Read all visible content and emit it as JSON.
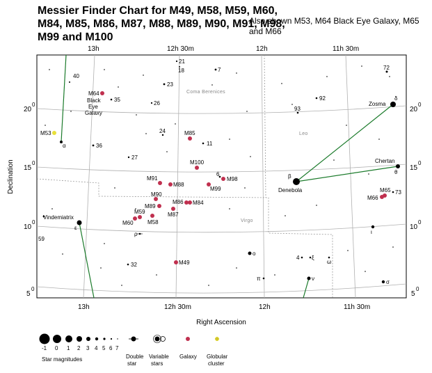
{
  "header": {
    "title": "Messier Finder Chart for M49, M58, M59, M60, M84, M85, M86, M87, M88, M89, M90, M91, M98, M99 and M100",
    "subtitle": "Also shown M53, M64 Black Eye Galaxy, M65 and M66"
  },
  "axes": {
    "ra_ticks": [
      "13h",
      "12h 30m",
      "12h",
      "11h 30m"
    ],
    "dec_ticks": [
      "20",
      "15",
      "10",
      "5"
    ],
    "degree_symbol": "0",
    "x_title": "Right Ascension",
    "y_title": "Declination"
  },
  "constellations": [
    "Coma Berenices",
    "Leo",
    "Virgo"
  ],
  "colors": {
    "galaxy": "#c0304f",
    "globular": "#e8e03a",
    "line": "#1a7a2a",
    "grid": "#b0b0b0",
    "boundary": "#9a9a9a"
  },
  "objects": [
    {
      "label": "M49",
      "type": "galaxy"
    },
    {
      "label": "M58",
      "type": "galaxy"
    },
    {
      "label": "M59",
      "type": "galaxy"
    },
    {
      "label": "M60",
      "type": "galaxy"
    },
    {
      "label": "M84",
      "type": "galaxy"
    },
    {
      "label": "M85",
      "type": "galaxy"
    },
    {
      "label": "M86",
      "type": "galaxy"
    },
    {
      "label": "M87",
      "type": "galaxy"
    },
    {
      "label": "M88",
      "type": "galaxy"
    },
    {
      "label": "M89",
      "type": "galaxy"
    },
    {
      "label": "M90",
      "type": "galaxy"
    },
    {
      "label": "M91",
      "type": "galaxy"
    },
    {
      "label": "M98",
      "type": "galaxy"
    },
    {
      "label": "M99",
      "type": "galaxy"
    },
    {
      "label": "M100",
      "type": "galaxy"
    },
    {
      "label": "M64",
      "type": "galaxy"
    },
    {
      "label": "M65",
      "type": "galaxy"
    },
    {
      "label": "M66",
      "type": "galaxy"
    },
    {
      "label": "M53",
      "type": "globular"
    }
  ],
  "m64_name": [
    "Black",
    "Eye",
    "Galaxy"
  ],
  "stars": {
    "named": [
      "Zosma",
      "Denebola",
      "Chertan",
      "Vindemiatrix"
    ],
    "greek": [
      "α",
      "β",
      "δ",
      "θ",
      "ε",
      "ρ",
      "ο",
      "ξ",
      "ω",
      "π",
      "ν",
      "σ",
      "ι"
    ],
    "numbered": [
      "21",
      "18",
      "7",
      "40",
      "23",
      "35",
      "26",
      "92",
      "93",
      "72",
      "24",
      "11",
      "36",
      "27",
      "6",
      "73",
      "59",
      "32",
      "4"
    ]
  },
  "legend": {
    "magnitudes": [
      "-1",
      "0",
      "1",
      "2",
      "3",
      "4",
      "5",
      "6",
      "7"
    ],
    "star_magnitudes": "Star magnitudes",
    "double_star": [
      "Double",
      "star"
    ],
    "variable_stars": [
      "Variable",
      "stars"
    ],
    "galaxy": "Galaxy",
    "globular_cluster": [
      "Globular",
      "cluster"
    ]
  }
}
